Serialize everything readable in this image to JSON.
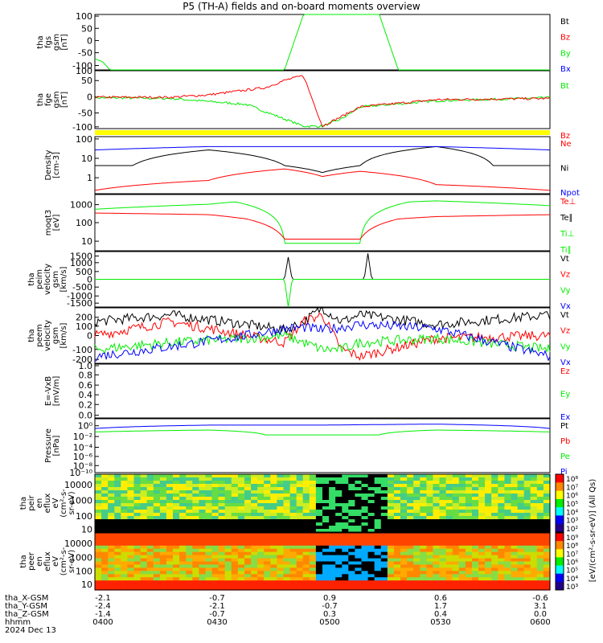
{
  "title": "P5 (TH-A) fields and on-board moments overview",
  "colors": {
    "black": "#000000",
    "red": "#ff0000",
    "green": "#00ee00",
    "blue": "#0000ff",
    "yellow": "#ffff00"
  },
  "panels": [
    {
      "id": "p1",
      "ylabel": [
        "tha",
        "fgs",
        "gsm",
        "[nT]"
      ],
      "ticks": [
        "100",
        "50",
        "0",
        "-50",
        "-100"
      ],
      "legend": [
        {
          "text": "Bt",
          "color": "#000000"
        },
        {
          "text": "Bz",
          "color": "#ff0000"
        },
        {
          "text": "By",
          "color": "#00ee00"
        },
        {
          "text": "Bx",
          "color": "#0000ff"
        }
      ]
    },
    {
      "id": "p2",
      "ylabel": [
        "tha",
        "fge",
        "gsm",
        "[nT]"
      ],
      "ticks": [
        "100",
        "50",
        "0",
        "-50",
        "-100"
      ],
      "legend": [
        {
          "text": "Bt",
          "color": "#00ee00"
        },
        {
          "text": "Bz",
          "color": "#ff0000"
        }
      ]
    },
    {
      "id": "p3",
      "ylabel": [
        "Density",
        "[cm-3]"
      ],
      "ticks": [
        "100",
        "10",
        "1"
      ],
      "legend": [
        {
          "text": "Ne",
          "color": "#ff0000"
        },
        {
          "text": "Ni",
          "color": "#000000"
        },
        {
          "text": "Npot",
          "color": "#0000ff"
        }
      ]
    },
    {
      "id": "p4",
      "ylabel": [
        "moqt3",
        "[eV]"
      ],
      "ticks": [
        "1000",
        "100",
        "10"
      ],
      "legend": [
        {
          "text": "Te⊥",
          "color": "#ff0000"
        },
        {
          "text": "Te∥",
          "color": "#000000"
        },
        {
          "text": "Ti⊥",
          "color": "#00ee00"
        },
        {
          "text": "Ti∥",
          "color": "#00ee00"
        }
      ]
    },
    {
      "id": "p5",
      "ylabel": [
        "tha",
        "peim",
        "velocity",
        "gsm",
        "[km/s]"
      ],
      "ticks": [
        "1500",
        "1000",
        "500",
        "0",
        "-500",
        "-1000",
        "-1500"
      ],
      "legend": [
        {
          "text": "Vt",
          "color": "#000000"
        },
        {
          "text": "Vz",
          "color": "#ff0000"
        },
        {
          "text": "Vy",
          "color": "#00ee00"
        },
        {
          "text": "Vx",
          "color": "#0000ff"
        }
      ]
    },
    {
      "id": "p6",
      "ylabel": [
        "tha",
        "peem",
        "velocity",
        "gsm",
        "[km/s]"
      ],
      "ticks": [
        "200",
        "100",
        "0",
        "-100",
        "-200"
      ],
      "legend": [
        {
          "text": "Vt",
          "color": "#000000"
        },
        {
          "text": "Vz",
          "color": "#ff0000"
        },
        {
          "text": "Vy",
          "color": "#00ee00"
        },
        {
          "text": "Vx",
          "color": "#0000ff"
        }
      ]
    },
    {
      "id": "p7",
      "ylabel": [
        "E=-VxB",
        "[mV/m]"
      ],
      "ticks": [
        "1.0",
        "0.8",
        "0.6",
        "0.4",
        "0.2",
        "0.0"
      ],
      "legend": [
        {
          "text": "Ez",
          "color": "#ff0000"
        },
        {
          "text": "Ey",
          "color": "#00ee00"
        },
        {
          "text": "Ex",
          "color": "#0000ff"
        }
      ]
    },
    {
      "id": "p8",
      "ylabel": [
        "Pressure",
        "[nPa]"
      ],
      "ticks": [
        "10⁰",
        "10⁻²",
        "10⁻⁴",
        "10⁻⁶",
        "10⁻⁸",
        "10⁻¹⁰"
      ],
      "legend": [
        {
          "text": "Pt",
          "color": "#000000"
        },
        {
          "text": "Pb",
          "color": "#ff0000"
        },
        {
          "text": "Pe",
          "color": "#00ee00"
        },
        {
          "text": "Pi",
          "color": "#0000ff"
        }
      ]
    },
    {
      "id": "p9",
      "ylabel": [
        "tha",
        "peir",
        "en",
        "eflux",
        "eV",
        "(cm²-s-",
        "sr-eV)"
      ],
      "ticks": [
        "10000",
        "1000",
        "100",
        "10"
      ],
      "colorbar_ticks": [
        "10⁸",
        "10⁷",
        "10⁶",
        "10⁵",
        "10⁴",
        "10³",
        "10²"
      ]
    },
    {
      "id": "p10",
      "ylabel": [
        "tha",
        "peer",
        "en",
        "eflux",
        "eV",
        "(cm²-s-",
        "sr-eV)"
      ],
      "ticks": [
        "10000",
        "1000",
        "100",
        "10"
      ],
      "colorbar_ticks": [
        "10⁹",
        "10⁸",
        "10⁷",
        "10⁶",
        "10⁵",
        "10⁴",
        "10³"
      ]
    }
  ],
  "colorbar_label": "[eV/(cm²-s-sr-eV)] (All Qs)",
  "footer": {
    "rows": [
      {
        "label": "tha_X-GSM",
        "values": [
          "-2.1",
          "-0.7",
          "0.9",
          "0.6",
          "-0.6"
        ]
      },
      {
        "label": "tha_Y-GSM",
        "values": [
          "-2.4",
          "-2.1",
          "-0.7",
          "1.7",
          "3.1"
        ]
      },
      {
        "label": "tha_Z-GSM",
        "values": [
          "-1.4",
          "-0.7",
          "0.3",
          "0.4",
          "0.0"
        ]
      },
      {
        "label": "hhmm",
        "values": [
          "0400",
          "0430",
          "0500",
          "0530",
          "0600"
        ]
      }
    ],
    "date": "2024 Dec 13"
  },
  "chart_data": {
    "type": "line",
    "title": "P5 (TH-A) fields and on-board moments overview",
    "x": [
      "0400",
      "0430",
      "0500",
      "0530",
      "0600"
    ],
    "xlabel": "hhmm",
    "date": "2024 Dec 13",
    "series_groups": [
      {
        "panel": "tha fgs gsm [nT]",
        "ylim": [
          -100,
          100
        ],
        "series": [
          {
            "name": "By",
            "x": [
              "0400",
              "0402",
              "0404",
              "0450",
              "0455",
              "0508",
              "0515",
              "0520",
              "0600"
            ],
            "values": [
              -60,
              -70,
              -100,
              -100,
              100,
              100,
              100,
              -100,
              -100
            ]
          }
        ]
      },
      {
        "panel": "tha fge gsm [nT]",
        "ylim": [
          -120,
          120
        ],
        "series": [
          {
            "name": "Bt",
            "x": [
              "0400",
              "0420",
              "0440",
              "0450",
              "0455",
              "0500",
              "0505",
              "0510",
              "0530",
              "0600"
            ],
            "values": [
              8,
              5,
              -20,
              -80,
              -110,
              -110,
              -80,
              -30,
              -5,
              8
            ]
          },
          {
            "name": "Bz",
            "x": [
              "0400",
              "0420",
              "0430",
              "0445",
              "0450",
              "0455",
              "0500",
              "0510",
              "0530",
              "0600"
            ],
            "values": [
              10,
              10,
              20,
              50,
              80,
              100,
              -110,
              -30,
              0,
              5
            ]
          }
        ]
      },
      {
        "panel": "Density [cm-3]",
        "ylim_log": [
          0.1,
          100
        ],
        "series": [
          {
            "name": "Ni",
            "x": [
              "0400",
              "0410",
              "0430",
              "0450",
              "0500",
              "0510",
              "0530",
              "0545",
              "0600"
            ],
            "values": [
              3,
              3,
              20,
              3,
              1.3,
              3,
              30,
              3,
              3
            ]
          },
          {
            "name": "Ne",
            "x": [
              "0400",
              "0430",
              "0450",
              "0500",
              "0510",
              "0530",
              "0600"
            ],
            "values": [
              0.15,
              0.5,
              2,
              0.8,
              1.5,
              0.3,
              0.15
            ]
          },
          {
            "name": "Npot",
            "x": [
              "0400",
              "0430",
              "0530",
              "0600"
            ],
            "values": [
              20,
              30,
              30,
              20
            ]
          }
        ]
      },
      {
        "panel": "moqt3 [eV]",
        "ylim_log": [
          10,
          2000
        ],
        "series": [
          {
            "name": "Ti⊥",
            "x": [
              "0400",
              "0430",
              "0437",
              "0450",
              "0500",
              "0510",
              "0523",
              "0530",
              "0600"
            ],
            "values": [
              500,
              800,
              1000,
              20,
              20,
              20,
              1000,
              1100,
              700
            ]
          },
          {
            "name": "Te⊥",
            "x": [
              "0400",
              "0430",
              "0440",
              "0450",
              "0500",
              "0510",
              "0520",
              "0530",
              "0600"
            ],
            "values": [
              350,
              300,
              200,
              30,
              30,
              30,
              200,
              250,
              300
            ]
          }
        ]
      },
      {
        "panel": "tha peim velocity gsm [km/s]",
        "ylim": [
          -1500,
          1500
        ],
        "series": [
          {
            "name": "Vt",
            "x": [
              "0400",
              "0450",
              "0451",
              "0452",
              "0500",
              "0511",
              "0512",
              "0513",
              "0600"
            ],
            "values": [
              0,
              0,
              1200,
              0,
              0,
              0,
              1400,
              0,
              0
            ]
          },
          {
            "name": "Vy",
            "x": [
              "0400",
              "0450",
              "0451",
              "0452",
              "0600"
            ],
            "values": [
              0,
              0,
              -1500,
              0,
              0
            ]
          }
        ]
      },
      {
        "panel": "tha peem velocity gsm [km/s]",
        "ylim": [
          -200,
          200
        ],
        "series": [
          {
            "name": "Vt",
            "x": [
              "0400",
              "0420",
              "0440",
              "0450",
              "0455",
              "0500",
              "0505",
              "0510",
              "0530",
              "0600"
            ],
            "values": [
              100,
              150,
              80,
              40,
              100,
              200,
              100,
              150,
              80,
              150
            ]
          },
          {
            "name": "Vz",
            "x": [
              "0400",
              "0420",
              "0440",
              "0450",
              "0455",
              "0500",
              "0505",
              "0510",
              "0530",
              "0600"
            ],
            "values": [
              0,
              100,
              0,
              -50,
              100,
              150,
              -100,
              -150,
              -20,
              0
            ]
          },
          {
            "name": "Vy",
            "x": [
              "0400",
              "0420",
              "0440",
              "0450",
              "0455",
              "0500",
              "0505",
              "0510",
              "0530",
              "0600"
            ],
            "values": [
              -100,
              -50,
              -20,
              0,
              -50,
              -100,
              -100,
              -50,
              -20,
              -100
            ]
          },
          {
            "name": "Vx",
            "x": [
              "0400",
              "0420",
              "0440",
              "0450",
              "0455",
              "0500",
              "0505",
              "0510",
              "0530",
              "0600"
            ],
            "values": [
              -150,
              -80,
              0,
              50,
              60,
              40,
              60,
              80,
              50,
              -150
            ]
          }
        ]
      },
      {
        "panel": "Pressure [nPa]",
        "ylim_log": [
          1e-10,
          10
        ],
        "series": [
          {
            "name": "Pi",
            "x": [
              "0400",
              "0430",
              "0500",
              "0530",
              "0600"
            ],
            "values": [
              0.1,
              0.5,
              0.5,
              0.8,
              0.1
            ]
          },
          {
            "name": "Pe",
            "x": [
              "0400",
              "0430",
              "0445",
              "0500",
              "0515",
              "0530",
              "0600"
            ],
            "values": [
              0.02,
              0.05,
              0.005,
              0.005,
              0.005,
              0.05,
              0.02
            ]
          }
        ]
      }
    ]
  }
}
